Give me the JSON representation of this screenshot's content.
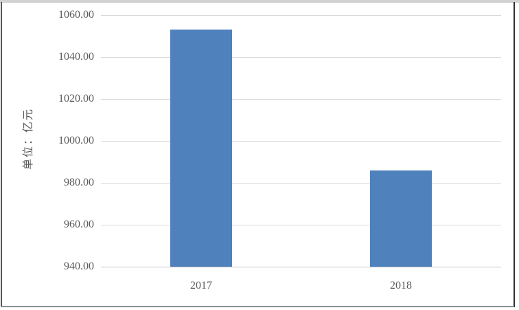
{
  "chart_data": {
    "type": "bar",
    "title": "",
    "categories": [
      "2017",
      "2018"
    ],
    "values": [
      1053,
      986
    ],
    "ylabel": "单位：亿元",
    "xlabel": "",
    "ylim": [
      940,
      1060
    ],
    "ytick_step": 20,
    "ytick_decimals": 2,
    "grid": "horizontal-only",
    "legend": "none",
    "bar_color": "#4f81bd",
    "gridline_color": "#d9d9d9",
    "text_color": "#595959"
  }
}
